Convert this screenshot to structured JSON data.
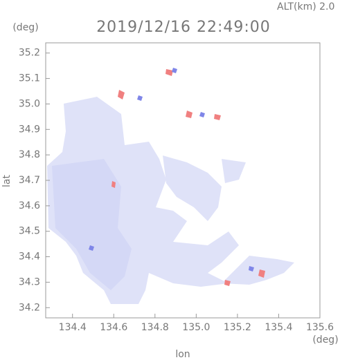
{
  "chart_data": {
    "type": "map",
    "title": "2019/12/16 22:49:00",
    "subtitle": "ALT(km) 2.0",
    "x_label": "lon",
    "y_label": "lat",
    "x_unit": "(deg)",
    "y_unit": "(deg)",
    "xlim": [
      134.27,
      135.6
    ],
    "ylim": [
      34.16,
      35.24
    ],
    "xticks": [
      134.4,
      134.6,
      134.8,
      {
        "value": 135,
        "label": "135.0"
      },
      135.2,
      135.4,
      135.6
    ],
    "yticks": [
      34.2,
      34.3,
      34.4,
      34.5,
      34.6,
      34.7,
      34.8,
      34.9,
      {
        "value": 35,
        "label": "35.0"
      },
      35.1,
      35.2
    ]
  }
}
